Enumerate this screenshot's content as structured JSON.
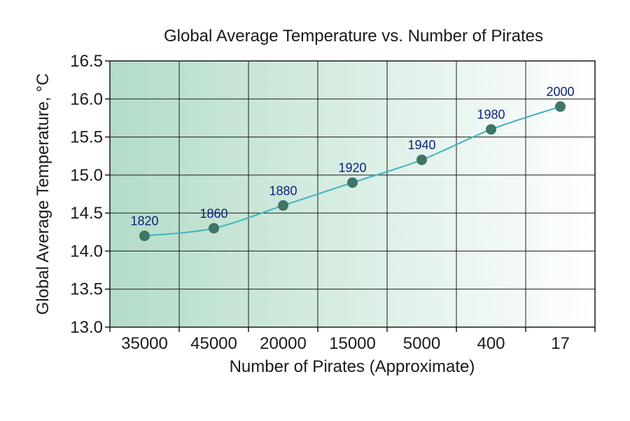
{
  "chart_data": {
    "type": "line",
    "title": "Global Average Temperature vs. Number of Pirates",
    "xlabel": "Number of Pirates (Approximate)",
    "ylabel": "Global Average Temperature, °C",
    "categories": [
      "35000",
      "45000",
      "20000",
      "15000",
      "5000",
      "400",
      "17"
    ],
    "series": [
      {
        "values": [
          14.2,
          14.3,
          14.6,
          14.9,
          15.2,
          15.6,
          15.9
        ]
      }
    ],
    "point_labels": [
      "1820",
      "1860",
      "1880",
      "1920",
      "1940",
      "1980",
      "2000"
    ],
    "ylim": [
      13.0,
      16.5
    ],
    "yticks": [
      "13.0",
      "13.5",
      "14.0",
      "14.5",
      "15.0",
      "15.5",
      "16.0",
      "16.5"
    ],
    "grid": true,
    "colors": {
      "line": "#3fb3c0",
      "marker": "#3d7566",
      "gradient_start": "#b3dcc7",
      "gradient_end": "#ffffff",
      "label": "#0d1f7a"
    }
  }
}
